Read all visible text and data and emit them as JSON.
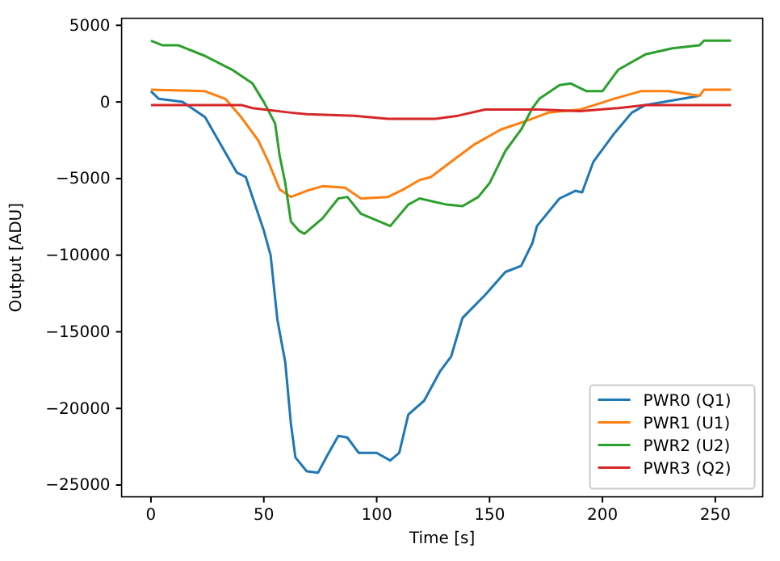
{
  "chart_data": {
    "type": "line",
    "xlabel": "Time [s]",
    "ylabel": "Output [ADU]",
    "xlim": [
      -13,
      271
    ],
    "ylim": [
      -25770,
      5460
    ],
    "xticks": [
      0,
      50,
      100,
      150,
      200,
      250
    ],
    "yticks": [
      5000,
      0,
      -5000,
      -10000,
      -15000,
      -20000,
      -25000
    ],
    "grid": false,
    "legend": "bottom right",
    "series": [
      {
        "name": "PWR0 (Q1)",
        "color": "#1f77b4",
        "x": [
          0,
          3.5,
          14,
          24,
          31,
          38,
          42,
          50,
          53,
          56,
          59.5,
          62,
          64,
          69,
          74,
          78,
          83,
          87,
          92,
          100,
          106,
          110,
          114,
          121,
          128,
          133,
          138,
          148,
          157,
          164,
          169,
          171,
          181,
          188,
          191,
          196,
          205,
          213,
          219,
          231,
          243
        ],
        "values": [
          700,
          200,
          0,
          -1000,
          -2800,
          -4600,
          -4900,
          -8400,
          -10000,
          -14200,
          -17000,
          -21000,
          -23200,
          -24100,
          -24200,
          -23100,
          -21800,
          -21900,
          -22900,
          -22900,
          -23400,
          -22900,
          -20400,
          -19500,
          -17600,
          -16600,
          -14100,
          -12600,
          -11100,
          -10700,
          -9200,
          -8100,
          -6300,
          -5800,
          -5900,
          -3900,
          -2100,
          -700,
          -200,
          100,
          400
        ]
      },
      {
        "name": "PWR1 (U1)",
        "color": "#ff7f0e",
        "x": [
          0,
          24,
          33,
          40,
          47.5,
          52,
          57,
          62,
          69,
          76,
          86,
          93,
          105,
          112,
          119,
          124,
          133,
          143,
          155,
          167,
          176,
          190,
          205,
          217,
          229,
          243,
          245,
          257
        ],
        "values": [
          800,
          700,
          200,
          -1000,
          -2500,
          -3900,
          -5700,
          -6200,
          -5800,
          -5500,
          -5600,
          -6300,
          -6200,
          -5700,
          -5100,
          -4900,
          -3900,
          -2800,
          -1800,
          -1200,
          -700,
          -500,
          200,
          700,
          700,
          400,
          800,
          800
        ]
      },
      {
        "name": "PWR2 (U2)",
        "color": "#2ca02c",
        "x": [
          0,
          5,
          12,
          24,
          36,
          45,
          50,
          55,
          57,
          59.5,
          62,
          65.5,
          68,
          76,
          83,
          87,
          93,
          106,
          114,
          119,
          131,
          138,
          145,
          150,
          157,
          164,
          169,
          172,
          181,
          186,
          193,
          200,
          207,
          219,
          231,
          243,
          245,
          257
        ],
        "values": [
          4000,
          3700,
          3700,
          3000,
          2100,
          1200,
          0,
          -1400,
          -3500,
          -5300,
          -7800,
          -8400,
          -8600,
          -7600,
          -6300,
          -6200,
          -7300,
          -8100,
          -6700,
          -6300,
          -6700,
          -6800,
          -6200,
          -5300,
          -3200,
          -1800,
          -400,
          200,
          1100,
          1200,
          700,
          700,
          2100,
          3100,
          3500,
          3700,
          4000,
          4000
        ]
      },
      {
        "name": "PWR3 (Q2)",
        "color": "#d62728",
        "x": [
          0,
          40,
          45,
          62,
          69,
          90,
          105,
          126,
          136,
          148,
          172,
          190,
          207,
          219,
          243,
          257
        ],
        "values": [
          -200,
          -200,
          -400,
          -700,
          -800,
          -900,
          -1100,
          -1100,
          -900,
          -500,
          -500,
          -600,
          -400,
          -200,
          -200,
          -200
        ]
      }
    ]
  }
}
